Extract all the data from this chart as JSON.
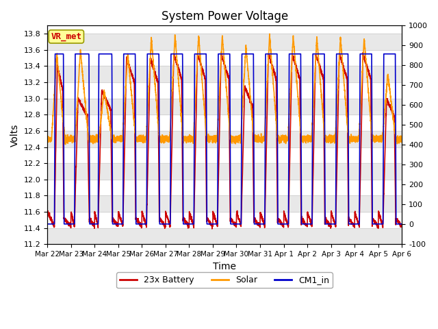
{
  "title": "System Power Voltage",
  "xlabel": "Time",
  "ylabel_left": "Volts",
  "ylim_left": [
    11.2,
    13.9
  ],
  "ylim_right": [
    -100,
    1000
  ],
  "yticks_left": [
    11.2,
    11.4,
    11.6,
    11.8,
    12.0,
    12.2,
    12.4,
    12.6,
    12.8,
    13.0,
    13.2,
    13.4,
    13.6,
    13.8
  ],
  "yticks_right": [
    -100,
    0,
    100,
    200,
    300,
    400,
    500,
    600,
    700,
    800,
    900,
    1000
  ],
  "xtick_labels": [
    "Mar 22",
    "Mar 23",
    "Mar 24",
    "Mar 25",
    "Mar 26",
    "Mar 27",
    "Mar 28",
    "Mar 29",
    "Mar 30",
    "Mar 31",
    "Apr 1",
    "Apr 2",
    "Apr 3",
    "Apr 4",
    "Apr 5",
    "Apr 6"
  ],
  "legend_labels": [
    "23x Battery",
    "Solar",
    "CM1_in"
  ],
  "legend_colors": [
    "#cc0000",
    "#ff9900",
    "#0000cc"
  ],
  "vr_met_label": "VR_met",
  "vr_met_color": "#cc0000",
  "vr_met_bg": "#ffff99",
  "band_color": "#e8e8e8",
  "grid_color": "#cccccc",
  "num_days": 15
}
